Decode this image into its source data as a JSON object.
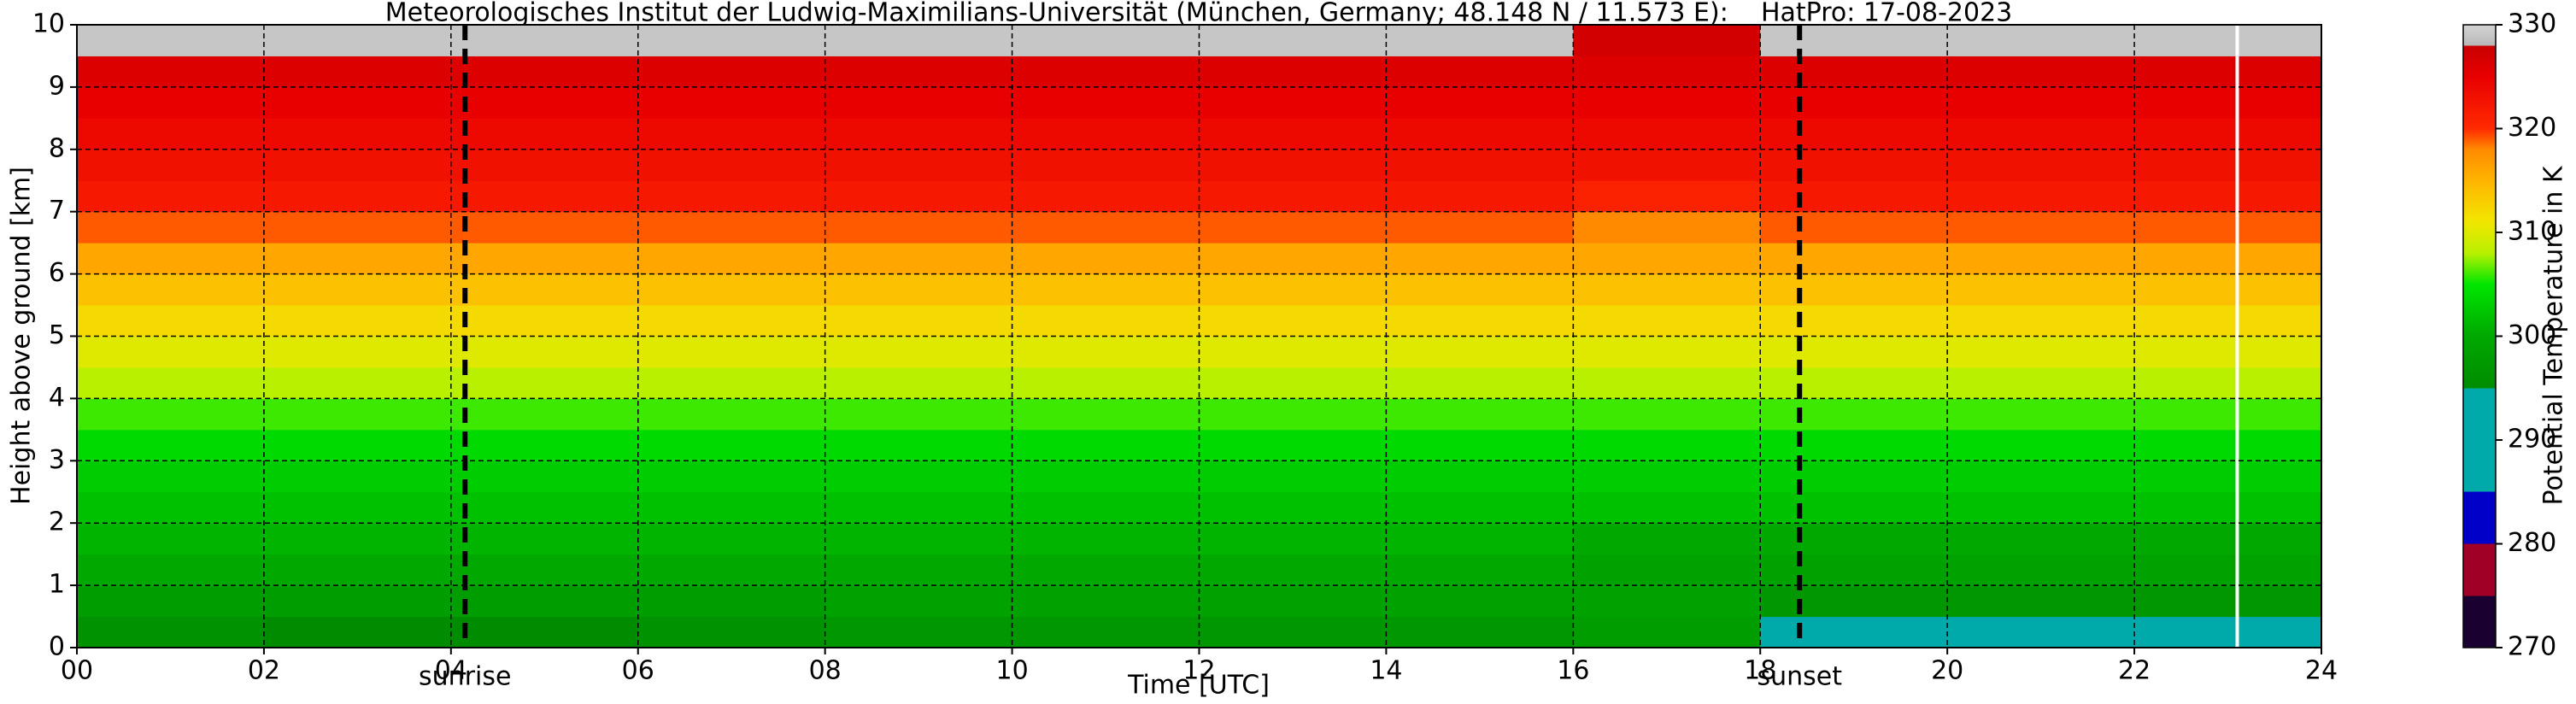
{
  "chart_data": {
    "type": "heatmap",
    "title": "Meteorologisches Institut der Ludwig-Maximilians-Universität (München, Germany; 48.148 N / 11.573 E):    HatPro: 17-08-2023",
    "xlabel": "Time [UTC]",
    "ylabel": "Height above ground [km]",
    "colorbar_label": "Potential Temperature in K",
    "xlim": [
      0,
      24
    ],
    "ylim": [
      0,
      10
    ],
    "xticks": [
      {
        "value": 0,
        "label": "00"
      },
      {
        "value": 2,
        "label": "02"
      },
      {
        "value": 4,
        "label": "04"
      },
      {
        "value": 6,
        "label": "06"
      },
      {
        "value": 8,
        "label": "08"
      },
      {
        "value": 10,
        "label": "10"
      },
      {
        "value": 12,
        "label": "12"
      },
      {
        "value": 14,
        "label": "14"
      },
      {
        "value": 16,
        "label": "16"
      },
      {
        "value": 18,
        "label": "18"
      },
      {
        "value": 20,
        "label": "20"
      },
      {
        "value": 22,
        "label": "22"
      },
      {
        "value": 24,
        "label": "24"
      }
    ],
    "yticks": [
      0,
      1,
      2,
      3,
      4,
      5,
      6,
      7,
      8,
      9,
      10
    ],
    "grid": true,
    "clim": [
      270,
      330
    ],
    "cticks": [
      270,
      280,
      290,
      300,
      310,
      320,
      330
    ],
    "colormap": [
      [
        270,
        "#1a0030"
      ],
      [
        275,
        "#1a0030"
      ],
      [
        275,
        "#a00025"
      ],
      [
        280,
        "#a00025"
      ],
      [
        280,
        "#0000c8"
      ],
      [
        285,
        "#0000c8"
      ],
      [
        285,
        "#00aaaa"
      ],
      [
        295,
        "#00aaaa"
      ],
      [
        295,
        "#008c00"
      ],
      [
        300,
        "#00a800"
      ],
      [
        305,
        "#00e600"
      ],
      [
        308,
        "#b8f000"
      ],
      [
        311,
        "#f2e600"
      ],
      [
        315,
        "#ffb400"
      ],
      [
        318,
        "#ff8a00"
      ],
      [
        320,
        "#ff2a00"
      ],
      [
        325,
        "#e80000"
      ],
      [
        328,
        "#c80000"
      ],
      [
        328,
        "#b8b8b8"
      ],
      [
        330,
        "#d4d4d4"
      ]
    ],
    "x_edges": [
      0,
      2,
      4,
      6,
      8,
      10,
      12,
      14,
      16,
      18,
      20,
      22,
      24
    ],
    "y_edges": [
      0,
      0.5,
      1,
      1.5,
      2,
      2.5,
      3,
      3.5,
      4,
      4.5,
      5,
      5.5,
      6,
      6.5,
      7,
      7.5,
      8,
      8.5,
      9,
      9.5,
      10
    ],
    "z": [
      [
        296,
        295,
        295,
        296,
        297,
        297,
        297,
        297,
        298,
        294,
        293,
        293
      ],
      [
        298,
        298,
        298,
        298,
        299,
        299,
        299,
        299,
        299,
        297,
        297,
        297
      ],
      [
        300,
        300,
        300,
        300,
        300,
        300,
        300,
        300,
        299,
        299,
        299,
        299
      ],
      [
        301,
        301,
        301,
        301,
        301,
        301,
        301,
        301,
        300,
        300,
        300,
        300
      ],
      [
        302,
        302,
        302,
        302,
        302,
        302,
        302,
        302,
        302,
        302,
        302,
        302
      ],
      [
        303,
        303,
        303,
        303,
        303,
        303,
        303,
        303,
        303,
        303,
        303,
        303
      ],
      [
        304,
        304,
        304,
        304,
        304,
        304,
        304,
        304,
        304,
        304,
        304,
        304
      ],
      [
        306,
        306,
        306,
        306,
        306,
        306,
        306,
        306,
        306,
        306,
        306,
        306
      ],
      [
        308,
        308,
        308,
        308,
        308,
        308,
        308,
        308,
        308,
        308,
        308,
        308
      ],
      [
        310,
        310,
        310,
        310,
        310,
        310,
        310,
        310,
        310,
        310,
        310,
        310
      ],
      [
        312,
        312,
        312,
        312,
        312,
        312,
        312,
        312,
        312,
        312,
        312,
        312
      ],
      [
        314,
        314,
        314,
        314,
        314,
        314,
        314,
        314,
        314,
        314,
        314,
        314
      ],
      [
        316,
        316,
        316,
        316,
        316,
        316,
        316,
        316,
        316,
        316,
        316,
        316
      ],
      [
        319,
        319,
        319,
        319,
        319,
        319,
        319,
        319,
        318,
        319,
        319,
        319
      ],
      [
        322,
        322,
        322,
        322,
        322,
        322,
        322,
        322,
        321,
        322,
        322,
        322
      ],
      [
        323,
        323,
        323,
        323,
        323,
        323,
        323,
        323,
        323,
        323,
        323,
        323
      ],
      [
        324,
        324,
        324,
        324,
        324,
        324,
        324,
        324,
        324,
        324,
        324,
        324
      ],
      [
        325,
        325,
        325,
        325,
        325,
        325,
        325,
        325,
        325,
        325,
        325,
        325
      ],
      [
        326,
        326,
        326,
        326,
        326,
        326,
        326,
        326,
        326,
        326,
        326,
        326
      ],
      [
        329,
        329,
        329,
        329,
        329,
        329,
        329,
        329,
        327,
        329,
        329,
        329
      ]
    ],
    "events": [
      {
        "label": "sunrise",
        "x": 4.15
      },
      {
        "label": "sunset",
        "x": 18.42
      }
    ],
    "missing_times": [
      23.1
    ]
  }
}
